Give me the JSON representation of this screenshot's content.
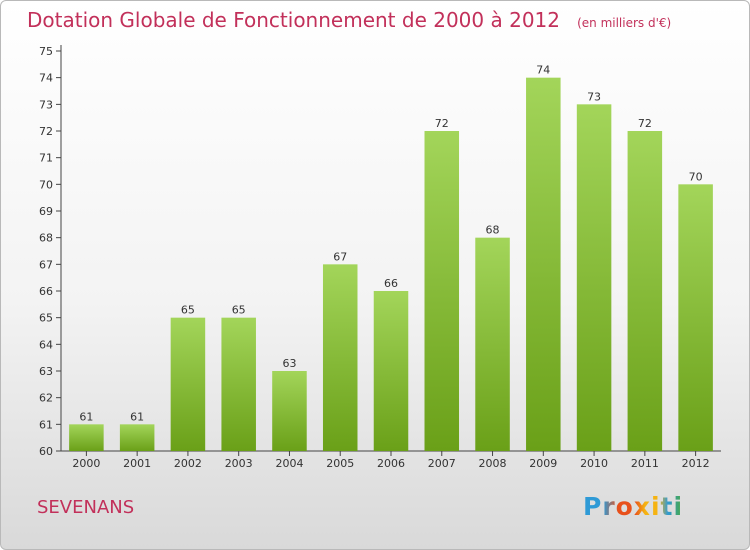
{
  "header": {
    "title": "Dotation Globale de Fonctionnement de 2000 à 2012",
    "subtitle": "(en milliers d'€)"
  },
  "footer": {
    "commune": "SEVENANS",
    "logo_text": "Proxiti"
  },
  "colors": {
    "title": "#c2305a",
    "bar_light": "#a3d55a",
    "bar_dark": "#6aa018",
    "logo": [
      "#2e9ad6",
      "#e8501b",
      "#f5b312",
      "#4aa93b"
    ]
  },
  "chart_data": {
    "type": "bar",
    "title": "Dotation Globale de Fonctionnement de 2000 à 2012",
    "subtitle": "(en milliers d'€)",
    "categories": [
      "2000",
      "2001",
      "2002",
      "2003",
      "2004",
      "2005",
      "2006",
      "2007",
      "2008",
      "2009",
      "2010",
      "2011",
      "2012"
    ],
    "values": [
      61,
      61,
      65,
      65,
      63,
      67,
      66,
      72,
      68,
      74,
      73,
      72,
      70
    ],
    "ylim": [
      60,
      75
    ],
    "yticks": [
      60,
      61,
      62,
      63,
      64,
      65,
      66,
      67,
      68,
      69,
      70,
      71,
      72,
      73,
      74,
      75
    ],
    "grid": false,
    "data_labels": true
  }
}
